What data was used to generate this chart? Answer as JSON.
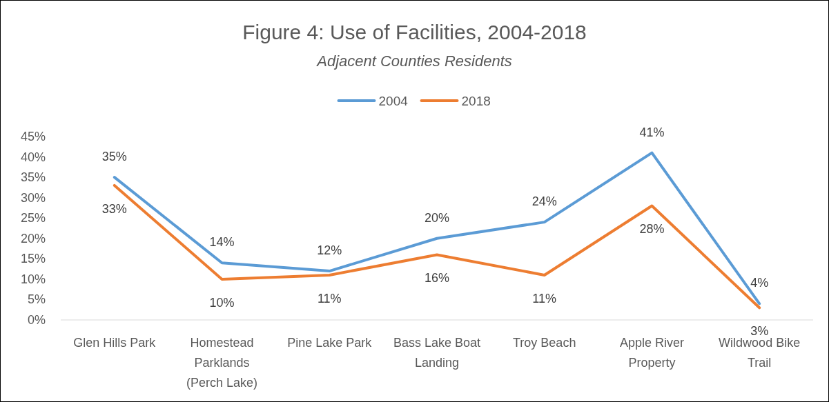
{
  "chart_data": {
    "type": "line",
    "title": "Figure 4: Use of Facilities, 2004-2018",
    "subtitle": "Adjacent Counties Residents",
    "categories": [
      "Glen Hills Park",
      "Homestead Parklands (Perch Lake)",
      "Pine Lake Park",
      "Bass Lake Boat Landing",
      "Troy Beach",
      "Apple River Property",
      "Wildwood Bike Trail"
    ],
    "series": [
      {
        "name": "2004",
        "color": "#5b9bd5",
        "values": [
          35,
          14,
          12,
          20,
          24,
          41,
          4
        ],
        "value_labels": [
          "35%",
          "14%",
          "12%",
          "20%",
          "24%",
          "41%",
          "4%"
        ]
      },
      {
        "name": "2018",
        "color": "#ed7d31",
        "values": [
          33,
          10,
          11,
          16,
          11,
          28,
          3
        ],
        "value_labels": [
          "33%",
          "10%",
          "11%",
          "16%",
          "11%",
          "28%",
          "3%"
        ]
      }
    ],
    "ylim": [
      0,
      45
    ],
    "yticks": [
      {
        "value": 0,
        "label": "0%"
      },
      {
        "value": 5,
        "label": "5%"
      },
      {
        "value": 10,
        "label": "10%"
      },
      {
        "value": 15,
        "label": "15%"
      },
      {
        "value": 20,
        "label": "20%"
      },
      {
        "value": 25,
        "label": "25%"
      },
      {
        "value": 30,
        "label": "30%"
      },
      {
        "value": 35,
        "label": "35%"
      },
      {
        "value": 40,
        "label": "40%"
      },
      {
        "value": 45,
        "label": "45%"
      }
    ],
    "grid": false,
    "legend": "top",
    "marker": "none",
    "line_style": "solid"
  }
}
